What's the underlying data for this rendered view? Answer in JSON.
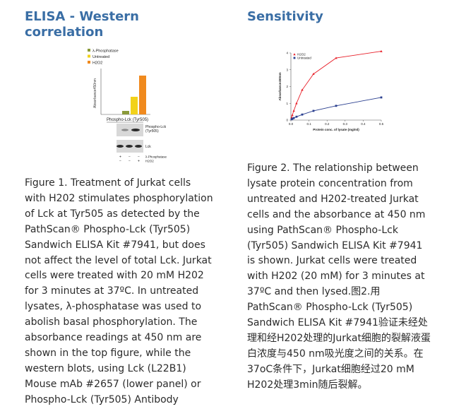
{
  "left": {
    "heading": "ELISA - Western\ncorrelation",
    "caption": "Figure 1. Treatment of Jurkat cells\nwith H202 stimulates phosphorylation\nof Lck at Tyr505 as detected by the\nPathScan® Phospho-Lck (Tyr505)\nSandwich ELISA Kit #7941, but does\nnot affect the level of total Lck. Jurkat\ncells were treated with 20 mM H202\nfor 3 minutes at 37ºC. In untreated\nlysates, λ-phosphatase was used to\nabolish basal phosphorylation. The\nabsorbance readings at 450 nm are\nshown in the top figure, while the\nwestern blots, using Lck (L22B1)\nMouse mAb #2657 (lower panel) or\nPhospho-Lck (Tyr505) Antibody",
    "figure": {
      "legend": [
        "λ-Phosphatase",
        "Untreated",
        "H2O2"
      ],
      "legend_colors": [
        "#8a9a3a",
        "#f2d21a",
        "#f08a1e"
      ],
      "ylabel": "Absorbance450nm",
      "blot_title": "Phospho-Lck (Tyr505)",
      "blot_label_1": "Phospho-Lck (Tyr505)",
      "blot_label_2": "Lck",
      "row_labels": [
        "λ-Phosphatase",
        "H2O2"
      ],
      "row_signs": [
        [
          "+",
          "−",
          "−"
        ],
        [
          "−",
          "−",
          "+"
        ]
      ]
    }
  },
  "right": {
    "heading": "Sensitivity",
    "caption": "Figure 2. The relationship between\nlysate protein concentration from\nuntreated and H202-treated Jurkat\ncells and the absorbance at 450 nm\nusing PathScan® Phospho-Lck\n(Tyr505) Sandwich ELISA Kit #7941\nis shown. Jurkat cells were treated\nwith H202 (20 mM) for 3 minutes at\n37ºC and then lysed.图2.用\nPathScan® Phospho-Lck (Tyr505)\nSandwich ELISA Kit #7941验证未经处\n理和经H202处理的Jurkat细胞的裂解液蛋\n白浓度与450 nm吸光度之间的关系。在\n37oC条件下，Jurkat细胞经过20 mM\nH202处理3min随后裂解。"
  },
  "chart_data": [
    {
      "type": "bar",
      "categories": [
        "λ-Phosphatase",
        "Untreated",
        "H2O2"
      ],
      "values": [
        0.2,
        1.0,
        2.2
      ],
      "colors": [
        "#8a9a3a",
        "#f2d21a",
        "#f08a1e"
      ],
      "ylabel": "Absorbance450nm",
      "ylim": [
        0,
        2.6
      ]
    },
    {
      "type": "line",
      "xlabel": "Protein conc. of lysate (mg/ml)",
      "ylabel": "Absorbance450nm",
      "xlim": [
        0,
        0.5
      ],
      "ylim": [
        0,
        4
      ],
      "xticks": [
        "0.0",
        "0.1",
        "0.2",
        "0.3",
        "0.4",
        "0.5"
      ],
      "yticks": [
        "0",
        "1",
        "2",
        "3",
        "4"
      ],
      "legend_position": "top-left",
      "series": [
        {
          "name": "H2O2",
          "color": "#e8202a",
          "x": [
            0.004,
            0.008,
            0.016,
            0.031,
            0.0625,
            0.125,
            0.25,
            0.5
          ],
          "values": [
            0.15,
            0.3,
            0.55,
            1.0,
            1.8,
            2.75,
            3.7,
            4.1
          ]
        },
        {
          "name": "Untreated",
          "color": "#2a3f8f",
          "x": [
            0.004,
            0.008,
            0.016,
            0.031,
            0.0625,
            0.125,
            0.25,
            0.5
          ],
          "values": [
            0.05,
            0.08,
            0.12,
            0.2,
            0.33,
            0.55,
            0.85,
            1.35
          ]
        }
      ]
    }
  ]
}
